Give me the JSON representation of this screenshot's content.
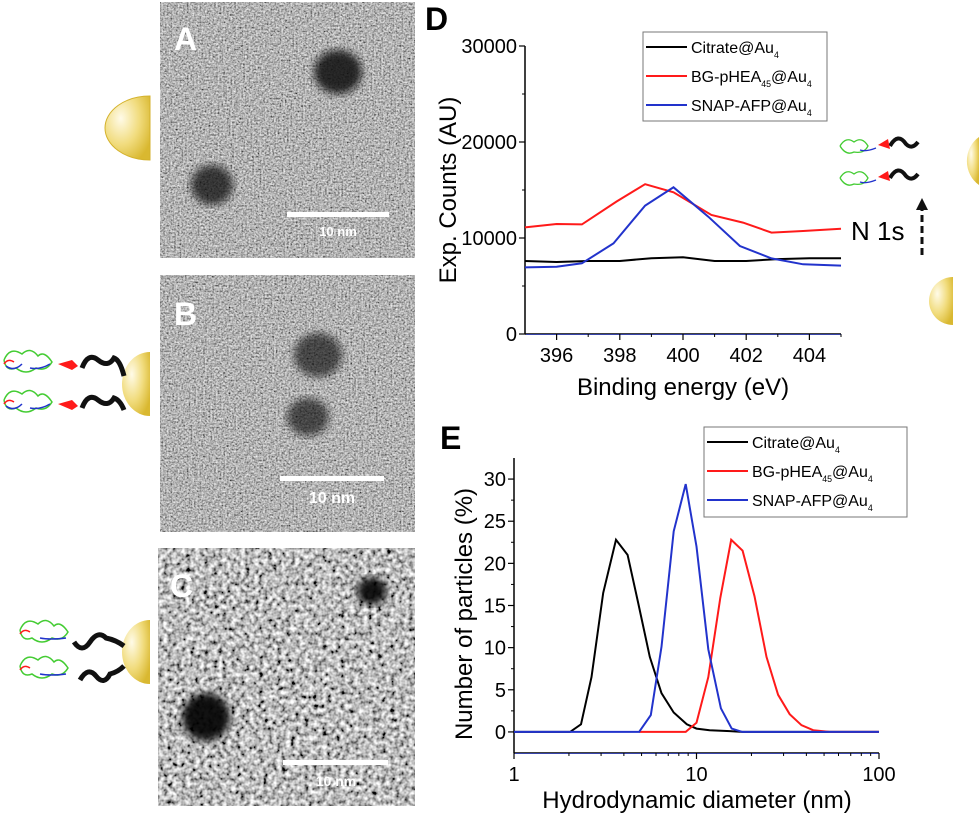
{
  "panels": {
    "a": {
      "label": "A",
      "scale_bar": "10 nm"
    },
    "b": {
      "label": "B",
      "scale_bar": "10 nm"
    },
    "c": {
      "label": "C",
      "scale_bar": "10 nm"
    },
    "d": {
      "label": "D",
      "annotation": "N 1s"
    },
    "e": {
      "label": "E"
    }
  },
  "colors": {
    "citrate": "#000000",
    "bg_phea": "#ff1a1a",
    "snap_afp": "#2233cc",
    "gold": "#e8c94a"
  },
  "chart_data": [
    {
      "type": "line",
      "panel": "D",
      "xlabel": "Binding energy (eV)",
      "ylabel": "Exp. Counts (AU)",
      "xlim": [
        395,
        405
      ],
      "ylim": [
        0,
        30000
      ],
      "xticks": [
        396,
        398,
        400,
        402,
        404
      ],
      "yticks": [
        0,
        10000,
        20000,
        30000
      ],
      "legend": "top-right",
      "series": [
        {
          "name": "Citrate@Au",
          "sub": "4",
          "color": "#000000",
          "x": [
            395,
            396,
            397,
            398,
            399,
            400,
            401,
            402,
            403,
            404,
            405
          ],
          "y": [
            7600,
            7500,
            7600,
            7600,
            7900,
            8000,
            7600,
            7600,
            7800,
            7900,
            7900
          ]
        },
        {
          "name": "BG-pHEA",
          "sub": "45",
          "name2": "@Au",
          "sub2": "4",
          "color": "#ff1a1a",
          "x": [
            395,
            396,
            396.8,
            397.9,
            398.8,
            399.7,
            400.9,
            401.9,
            402.8,
            403.8,
            405
          ],
          "y": [
            11100,
            11460,
            11420,
            13800,
            15600,
            14760,
            12400,
            11600,
            10560,
            10730,
            10970
          ]
        },
        {
          "name": "SNAP-AFP@Au",
          "sub": "4",
          "color": "#2233cc",
          "x": [
            395,
            396,
            396.8,
            397.8,
            398.8,
            399.7,
            400.8,
            401.8,
            402.8,
            403.8,
            405
          ],
          "y": [
            6940,
            7010,
            7360,
            9440,
            13370,
            15280,
            12220,
            9170,
            7880,
            7260,
            7120
          ]
        }
      ]
    },
    {
      "type": "line",
      "panel": "E",
      "xlabel": "Hydrodynamic diameter (nm)",
      "ylabel": "Number of particles (%)",
      "xscale": "log",
      "xlim": [
        1,
        100
      ],
      "ylim": [
        -2.5,
        32.5
      ],
      "xticks": [
        1,
        10,
        100
      ],
      "yticks": [
        0,
        5,
        10,
        15,
        20,
        25,
        30
      ],
      "legend": "top-right",
      "series": [
        {
          "name": "Citrate@Au",
          "sub": "4",
          "color": "#000000",
          "x": [
            1,
            2.03,
            2.33,
            2.66,
            3.08,
            3.62,
            4.19,
            4.79,
            5.55,
            6.43,
            7.5,
            8.85,
            10,
            11.8,
            15.2,
            17.8,
            100
          ],
          "y": [
            0,
            0,
            0.9,
            6.5,
            16.5,
            22.8,
            21,
            15.3,
            8.9,
            4.6,
            2.3,
            0.9,
            0.4,
            0.2,
            0.1,
            0,
            0
          ]
        },
        {
          "name": "BG-pHEA",
          "sub": "45",
          "name2": "@Au",
          "sub2": "4",
          "color": "#ff1a1a",
          "x": [
            4.85,
            8.73,
            10,
            11.6,
            13.5,
            15.5,
            17.9,
            20.8,
            24.2,
            28,
            32.4,
            37.6,
            43.6,
            53.7,
            100
          ],
          "y": [
            0,
            0,
            1.1,
            6.5,
            15.9,
            22.8,
            21.5,
            16.1,
            8.9,
            4.4,
            2.1,
            0.8,
            0.2,
            0,
            0
          ]
        },
        {
          "name": "SNAP-AFP@Au",
          "sub": "4",
          "color": "#2233cc",
          "x": [
            1,
            4.85,
            5.62,
            6.43,
            7.5,
            8.73,
            10,
            11.6,
            13.6,
            15.6,
            17.8,
            100
          ],
          "y": [
            0,
            0,
            2,
            10.1,
            23.8,
            29.4,
            22,
            9.8,
            2.8,
            0.4,
            0,
            0
          ]
        }
      ]
    }
  ]
}
